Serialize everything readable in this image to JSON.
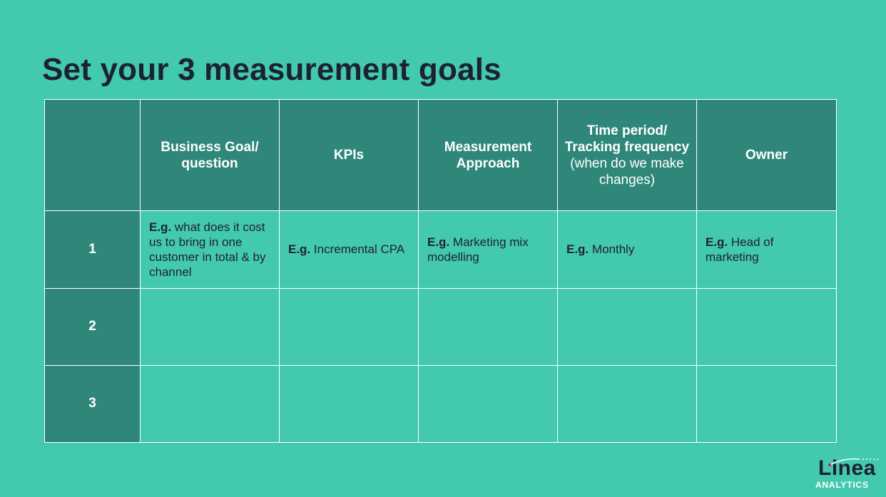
{
  "slide": {
    "title": "Set your 3 measurement goals"
  },
  "table": {
    "columns": [
      {
        "label": "",
        "sub": ""
      },
      {
        "label": "Business Goal/ question",
        "sub": ""
      },
      {
        "label": "KPIs",
        "sub": ""
      },
      {
        "label": "Measurement Approach",
        "sub": ""
      },
      {
        "label": "Time period/ Tracking frequency",
        "sub": "(when do we make changes)"
      },
      {
        "label": "Owner",
        "sub": ""
      }
    ],
    "rows": [
      {
        "number": "1",
        "cells": [
          {
            "prefix": "E.g.",
            "text": "what does it cost us to bring in one customer in total & by channel"
          },
          {
            "prefix": "E.g.",
            "text": "Incremental CPA"
          },
          {
            "prefix": "E.g.",
            "text": "Marketing mix modelling"
          },
          {
            "prefix": "E.g.",
            "text": "Monthly"
          },
          {
            "prefix": "E.g.",
            "text": "Head of marketing"
          }
        ]
      },
      {
        "number": "2",
        "cells": [
          {
            "prefix": "",
            "text": ""
          },
          {
            "prefix": "",
            "text": ""
          },
          {
            "prefix": "",
            "text": ""
          },
          {
            "prefix": "",
            "text": ""
          },
          {
            "prefix": "",
            "text": ""
          }
        ]
      },
      {
        "number": "3",
        "cells": [
          {
            "prefix": "",
            "text": ""
          },
          {
            "prefix": "",
            "text": ""
          },
          {
            "prefix": "",
            "text": ""
          },
          {
            "prefix": "",
            "text": ""
          },
          {
            "prefix": "",
            "text": ""
          }
        ]
      }
    ]
  },
  "logo": {
    "word": "Linea",
    "sub": "ANALYTICS"
  },
  "colors": {
    "background": "#43c9ad",
    "header_fill": "#2f877a",
    "text_dark": "#1d2230",
    "grid_line": "#ffffff"
  }
}
